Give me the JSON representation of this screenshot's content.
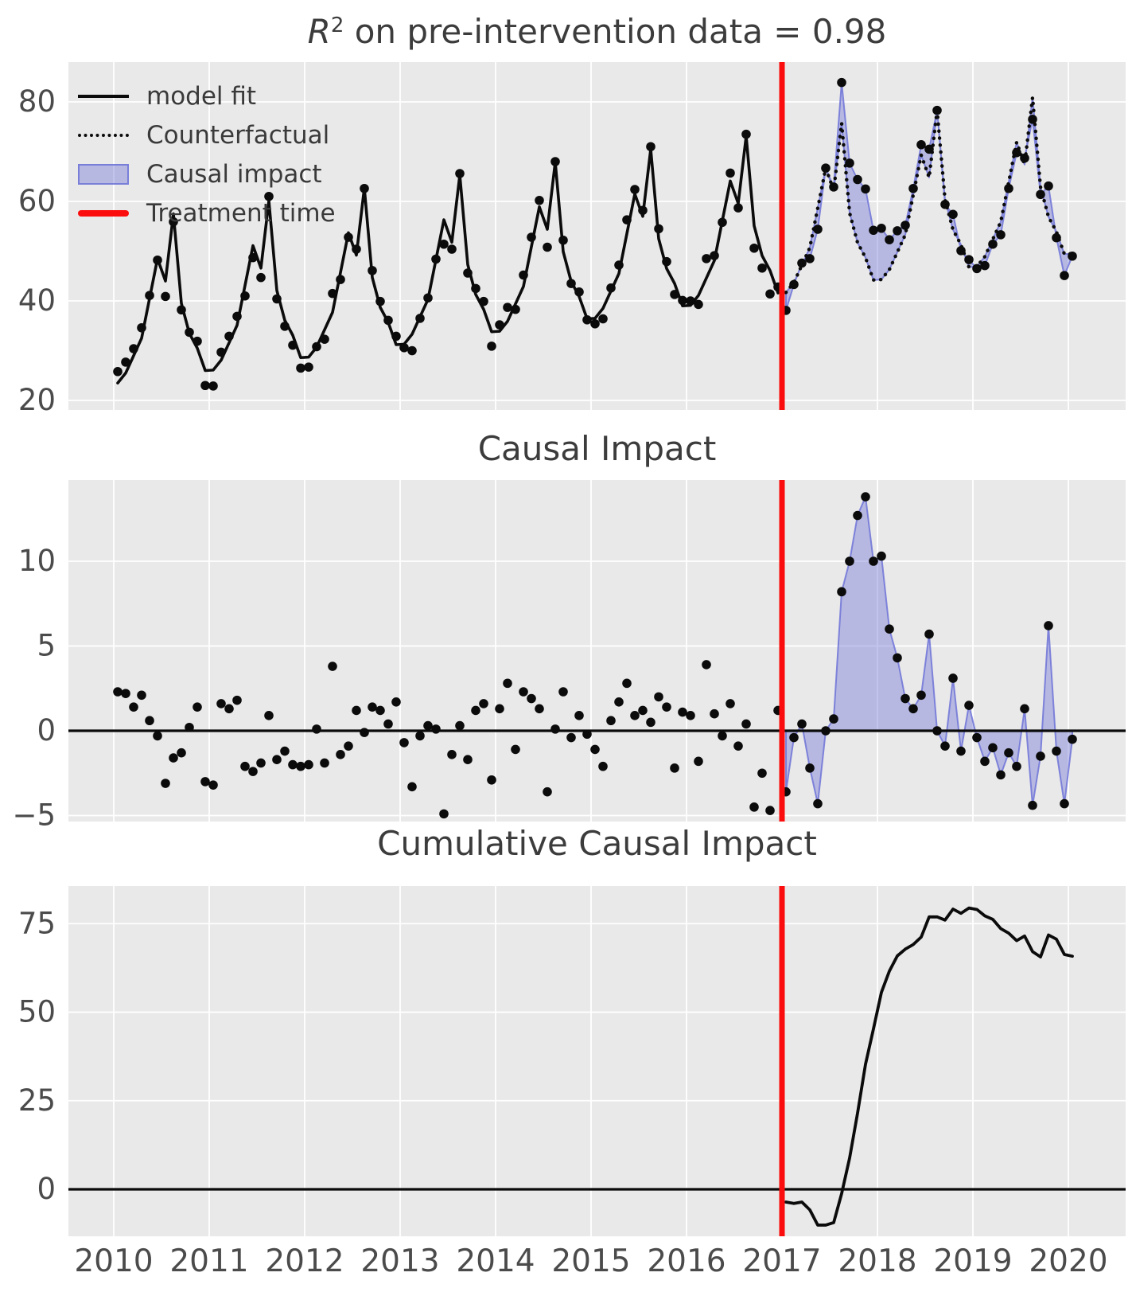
{
  "figure": {
    "background": "#ffffff",
    "panel_background": "#e9e9e9",
    "grid_color": "#ffffff",
    "series_color": "#0b0b0b",
    "treatment_color": "#fb0d0d",
    "impact_fill": "rgba(105,110,212,0.40)",
    "impact_edge": "rgba(110,115,215,0.85)",
    "tick_color": "#4b4b4b",
    "title_color": "#3c3c3c"
  },
  "titles": {
    "top": {
      "r": "R",
      "sup": "2",
      "rest": " on pre-intervention data = 0.98"
    },
    "middle": "Causal Impact",
    "bottom": "Cumulative Causal Impact"
  },
  "legend": [
    {
      "label": "model fit",
      "swatch": "solid-black-line"
    },
    {
      "label": "Counterfactual",
      "swatch": "dotted-black-line"
    },
    {
      "label": "Causal impact",
      "swatch": "blue-filled-band"
    },
    {
      "label": "Treatment time",
      "swatch": "red-line"
    }
  ],
  "x_axis": {
    "ticks": [
      2010,
      2011,
      2012,
      2013,
      2014,
      2015,
      2016,
      2017,
      2018,
      2019,
      2020
    ],
    "start_year": 2010,
    "n_months": 121,
    "treatment_time": 2017
  },
  "chart_data": [
    {
      "type": "line",
      "title": "R^2 on pre-intervention data = 0.98",
      "xlabel": "",
      "ylabel": "",
      "yticks": [
        20,
        40,
        60,
        80
      ],
      "ylim": [
        18.1,
        88.0
      ],
      "grid": true,
      "legend_position": "upper left",
      "treatment_time": 2017,
      "series": [
        {
          "name": "observed",
          "style": "scatter-black-dots",
          "period": "all",
          "values": [
            25.8,
            27.7,
            30.4,
            34.6,
            41.1,
            48.2,
            40.9,
            55.9,
            38.2,
            33.7,
            31.9,
            23.0,
            22.9,
            29.7,
            32.9,
            36.9,
            41.0,
            48.7,
            44.7,
            61.0,
            40.4,
            34.9,
            31.1,
            26.5,
            26.7,
            30.8,
            32.3,
            41.5,
            44.3,
            52.8,
            50.4,
            62.6,
            46.1,
            39.9,
            36.1,
            32.9,
            30.6,
            30.0,
            36.5,
            40.6,
            48.4,
            51.4,
            50.4,
            65.6,
            45.6,
            42.5,
            39.9,
            30.9,
            35.2,
            38.7,
            38.3,
            45.2,
            52.8,
            60.2,
            50.8,
            68.0,
            52.2,
            43.5,
            41.8,
            36.2,
            35.4,
            36.4,
            42.6,
            47.2,
            56.3,
            62.4,
            58.2,
            71.0,
            54.5,
            47.9,
            41.3,
            40.1,
            40.0,
            39.3,
            48.5,
            49.1,
            55.8,
            65.7,
            58.7,
            73.5,
            50.6,
            46.6,
            41.4,
            42.8,
            38.1,
            43.3,
            47.6,
            48.5,
            54.4,
            66.7,
            62.9,
            83.9,
            67.7,
            64.4,
            62.5,
            54.2,
            54.6,
            52.3,
            54.1,
            55.2,
            62.6,
            71.4,
            70.5,
            78.3,
            59.4,
            57.4,
            50.1,
            48.3,
            46.5,
            47.1,
            51.4,
            53.3,
            62.6,
            69.8,
            68.7,
            76.5,
            61.4,
            63.1,
            52.7,
            45.1,
            49.0
          ]
        },
        {
          "name": "model fit",
          "style": "solid-black-line",
          "period": "pre",
          "values": [
            23.5,
            25.5,
            29.0,
            32.5,
            40.5,
            48.5,
            44.0,
            57.5,
            39.5,
            33.5,
            30.5,
            26.0,
            26.1,
            28.1,
            31.6,
            35.1,
            43.1,
            51.1,
            46.6,
            60.1,
            42.1,
            36.1,
            33.1,
            28.6,
            28.7,
            30.7,
            34.2,
            37.7,
            45.7,
            53.7,
            49.2,
            62.7,
            44.7,
            38.7,
            35.7,
            31.2,
            31.3,
            33.3,
            36.8,
            40.3,
            48.3,
            56.3,
            51.8,
            65.3,
            47.3,
            41.3,
            38.3,
            33.8,
            33.9,
            35.9,
            39.4,
            42.9,
            50.9,
            58.9,
            54.4,
            67.9,
            49.9,
            43.9,
            40.9,
            36.4,
            36.5,
            38.5,
            42.0,
            45.5,
            53.5,
            61.5,
            57.0,
            70.5,
            52.5,
            46.5,
            43.5,
            39.0,
            39.1,
            41.1,
            44.6,
            48.1,
            56.1,
            64.1,
            59.6,
            73.1,
            55.1,
            49.1,
            46.1,
            41.6
          ]
        },
        {
          "name": "Counterfactual",
          "style": "dotted-black-line",
          "period": "post",
          "values": [
            41.7,
            43.7,
            47.2,
            50.7,
            58.7,
            66.7,
            62.2,
            75.7,
            57.7,
            51.7,
            48.7,
            44.2,
            44.3,
            46.3,
            49.8,
            53.3,
            61.3,
            69.3,
            64.8,
            78.3,
            60.3,
            54.3,
            51.3,
            46.8,
            46.9,
            48.9,
            52.4,
            55.9,
            63.9,
            71.9,
            67.4,
            80.9,
            62.9,
            56.9,
            53.9,
            49.4,
            49.5
          ]
        },
        {
          "name": "Causal impact",
          "style": "blue-band-between-observed-and-counterfactual",
          "period": "post"
        }
      ]
    },
    {
      "type": "scatter",
      "title": "Causal Impact",
      "xlabel": "",
      "ylabel": "",
      "yticks": [
        -5,
        0,
        5,
        10
      ],
      "ylim": [
        -5.4,
        14.8
      ],
      "grid": true,
      "zero_line": true,
      "treatment_time": 2017,
      "series": [
        {
          "name": "pointwise impact (observed minus counterfactual)",
          "style": "scatter-black-dots",
          "period": "all",
          "values": [
            2.3,
            2.2,
            1.4,
            2.1,
            0.6,
            -0.3,
            -3.1,
            -1.6,
            -1.3,
            0.2,
            1.4,
            -3.0,
            -3.2,
            1.6,
            1.3,
            1.8,
            -2.1,
            -2.4,
            -1.9,
            0.9,
            -1.7,
            -1.2,
            -2.0,
            -2.1,
            -2.0,
            0.1,
            -1.9,
            3.8,
            -1.4,
            -0.9,
            1.2,
            -0.1,
            1.4,
            1.2,
            0.4,
            1.7,
            -0.7,
            -3.3,
            -0.3,
            0.3,
            0.1,
            -4.9,
            -1.4,
            0.3,
            -1.7,
            1.2,
            1.6,
            -2.9,
            1.3,
            2.8,
            -1.1,
            2.3,
            1.9,
            1.3,
            -3.6,
            0.1,
            2.3,
            -0.4,
            0.9,
            -0.2,
            -1.1,
            -2.1,
            0.6,
            1.7,
            2.8,
            0.9,
            1.2,
            0.5,
            2.0,
            1.4,
            -2.2,
            1.1,
            0.9,
            -1.8,
            3.9,
            1.0,
            -0.3,
            1.6,
            -0.9,
            0.4,
            -4.5,
            -2.5,
            -4.7,
            1.2,
            -3.6,
            -0.4,
            0.4,
            -2.2,
            -4.3,
            0.0,
            0.7,
            8.2,
            10.0,
            12.7,
            13.8,
            10.0,
            10.3,
            6.0,
            4.3,
            1.9,
            1.3,
            2.1,
            5.7,
            0.0,
            -0.9,
            3.1,
            -1.2,
            1.5,
            -0.4,
            -1.8,
            -1.0,
            -2.6,
            -1.3,
            -2.1,
            1.3,
            -4.4,
            -1.5,
            6.2,
            -1.2,
            -4.3,
            -0.5
          ]
        },
        {
          "name": "impact band",
          "style": "blue-band-vs-zero",
          "period": "post"
        }
      ]
    },
    {
      "type": "line",
      "title": "Cumulative Causal Impact",
      "xlabel": "",
      "ylabel": "",
      "yticks": [
        0,
        25,
        50,
        75
      ],
      "ylim": [
        -13.3,
        85.6
      ],
      "grid": true,
      "zero_line": true,
      "treatment_time": 2017,
      "series": [
        {
          "name": "cumulative impact",
          "style": "solid-black-line",
          "period": "post",
          "values": [
            -3.6,
            -4.0,
            -3.6,
            -5.8,
            -10.1,
            -10.1,
            -9.4,
            -1.2,
            8.8,
            21.5,
            35.3,
            45.3,
            55.6,
            61.6,
            65.9,
            67.8,
            69.1,
            71.2,
            76.9,
            76.9,
            76.0,
            79.1,
            77.9,
            79.4,
            79.0,
            77.2,
            76.2,
            73.6,
            72.3,
            70.2,
            71.5,
            67.1,
            65.6,
            71.8,
            70.6,
            66.3,
            65.8
          ]
        }
      ]
    }
  ]
}
